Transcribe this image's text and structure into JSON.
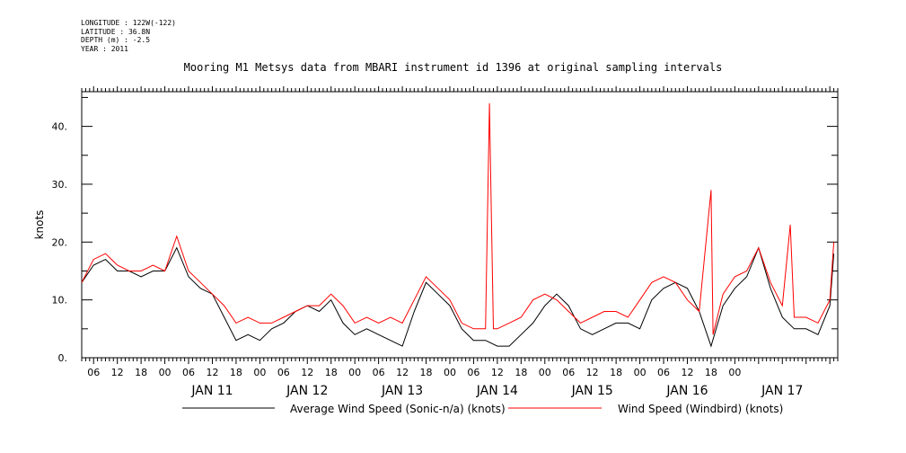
{
  "header": {
    "meta_lines": [
      "LONGITUDE : 122W(-122)",
      "LATITUDE : 36.8N",
      "DEPTH (m) : -2.5",
      "YEAR : 2011"
    ],
    "title": "Mooring M1 Metsys data from MBARI instrument id 1396 at original sampling intervals"
  },
  "chart_data": {
    "type": "line",
    "title": "Mooring M1 Metsys data from MBARI instrument id 1396 at original sampling intervals",
    "xlabel": "",
    "ylabel": "knots",
    "xlim": [
      "2011-01-10T03:00",
      "2011-01-18T02:00"
    ],
    "ylim": [
      0,
      46
    ],
    "y_ticks": [
      "0.",
      "10.",
      "20.",
      "30.",
      "40."
    ],
    "x_hour_ticks": [
      "06",
      "12",
      "18",
      "00",
      "06",
      "12",
      "18",
      "00",
      "06",
      "12",
      "18",
      "00",
      "06",
      "12",
      "18",
      "00",
      "06",
      "12",
      "18",
      "00",
      "06",
      "12",
      "18",
      "00",
      "06",
      "12",
      "18",
      "00"
    ],
    "x_day_labels": [
      "JAN 11",
      "JAN 12",
      "JAN 13",
      "JAN 14",
      "JAN 15",
      "JAN 16",
      "JAN 17"
    ],
    "grid": false,
    "legend_position": "bottom",
    "series": [
      {
        "name": "Average Wind Speed (Sonic-n/a) (knots)",
        "color": "#000000",
        "x": [
          "2011-01-10T03:00",
          "2011-01-10T06:00",
          "2011-01-10T09:00",
          "2011-01-10T12:00",
          "2011-01-10T15:00",
          "2011-01-10T18:00",
          "2011-01-10T21:00",
          "2011-01-11T00:00",
          "2011-01-11T03:00",
          "2011-01-11T06:00",
          "2011-01-11T09:00",
          "2011-01-11T12:00",
          "2011-01-11T15:00",
          "2011-01-11T18:00",
          "2011-01-11T21:00",
          "2011-01-12T00:00",
          "2011-01-12T03:00",
          "2011-01-12T06:00",
          "2011-01-12T09:00",
          "2011-01-12T12:00",
          "2011-01-12T15:00",
          "2011-01-12T18:00",
          "2011-01-12T21:00",
          "2011-01-13T00:00",
          "2011-01-13T03:00",
          "2011-01-13T06:00",
          "2011-01-13T09:00",
          "2011-01-13T12:00",
          "2011-01-13T15:00",
          "2011-01-13T18:00",
          "2011-01-13T21:00",
          "2011-01-14T00:00",
          "2011-01-14T03:00",
          "2011-01-14T06:00",
          "2011-01-14T09:00",
          "2011-01-14T12:00",
          "2011-01-14T15:00",
          "2011-01-14T18:00",
          "2011-01-14T21:00",
          "2011-01-15T00:00",
          "2011-01-15T03:00",
          "2011-01-15T06:00",
          "2011-01-15T09:00",
          "2011-01-15T12:00",
          "2011-01-15T15:00",
          "2011-01-15T18:00",
          "2011-01-15T21:00",
          "2011-01-16T00:00",
          "2011-01-16T03:00",
          "2011-01-16T06:00",
          "2011-01-16T09:00",
          "2011-01-16T12:00",
          "2011-01-16T15:00",
          "2011-01-16T18:00",
          "2011-01-16T21:00",
          "2011-01-17T00:00",
          "2011-01-17T03:00",
          "2011-01-17T06:00",
          "2011-01-17T09:00",
          "2011-01-17T12:00",
          "2011-01-17T15:00",
          "2011-01-17T18:00",
          "2011-01-17T21:00",
          "2011-01-18T00:00",
          "2011-01-18T01:00"
        ],
        "y": [
          13,
          16,
          17,
          15,
          15,
          14,
          15,
          15,
          19,
          14,
          12,
          11,
          7,
          3,
          4,
          3,
          5,
          6,
          8,
          9,
          8,
          10,
          6,
          4,
          5,
          4,
          3,
          2,
          8,
          13,
          11,
          9,
          5,
          3,
          3,
          2,
          2,
          4,
          6,
          9,
          11,
          9,
          5,
          4,
          5,
          6,
          6,
          5,
          10,
          12,
          13,
          12,
          8,
          2,
          9,
          12,
          14,
          19,
          12,
          7,
          5,
          5,
          4,
          9,
          18
        ]
      },
      {
        "name": "Wind Speed (Windbird) (knots)",
        "color": "#ff0000",
        "x": [
          "2011-01-10T03:00",
          "2011-01-10T06:00",
          "2011-01-10T09:00",
          "2011-01-10T12:00",
          "2011-01-10T15:00",
          "2011-01-10T18:00",
          "2011-01-10T21:00",
          "2011-01-11T00:00",
          "2011-01-11T03:00",
          "2011-01-11T06:00",
          "2011-01-11T09:00",
          "2011-01-11T12:00",
          "2011-01-11T15:00",
          "2011-01-11T18:00",
          "2011-01-11T21:00",
          "2011-01-12T00:00",
          "2011-01-12T03:00",
          "2011-01-12T06:00",
          "2011-01-12T09:00",
          "2011-01-12T12:00",
          "2011-01-12T15:00",
          "2011-01-12T18:00",
          "2011-01-12T21:00",
          "2011-01-13T00:00",
          "2011-01-13T03:00",
          "2011-01-13T06:00",
          "2011-01-13T09:00",
          "2011-01-13T12:00",
          "2011-01-13T15:00",
          "2011-01-13T18:00",
          "2011-01-13T21:00",
          "2011-01-14T00:00",
          "2011-01-14T03:00",
          "2011-01-14T06:00",
          "2011-01-14T09:00",
          "2011-01-14T10:00",
          "2011-01-14T10:30",
          "2011-01-14T11:00",
          "2011-01-14T12:00",
          "2011-01-14T15:00",
          "2011-01-14T18:00",
          "2011-01-14T21:00",
          "2011-01-15T00:00",
          "2011-01-15T03:00",
          "2011-01-15T06:00",
          "2011-01-15T09:00",
          "2011-01-15T12:00",
          "2011-01-15T15:00",
          "2011-01-15T18:00",
          "2011-01-15T21:00",
          "2011-01-16T00:00",
          "2011-01-16T03:00",
          "2011-01-16T06:00",
          "2011-01-16T09:00",
          "2011-01-16T12:00",
          "2011-01-16T15:00",
          "2011-01-16T18:00",
          "2011-01-16T18:30",
          "2011-01-16T21:00",
          "2011-01-17T00:00",
          "2011-01-17T03:00",
          "2011-01-17T06:00",
          "2011-01-17T09:00",
          "2011-01-17T12:00",
          "2011-01-17T14:00",
          "2011-01-17T15:00",
          "2011-01-17T18:00",
          "2011-01-17T21:00",
          "2011-01-18T00:00",
          "2011-01-18T01:00"
        ],
        "y": [
          13,
          17,
          18,
          16,
          15,
          15,
          16,
          15,
          21,
          15,
          13,
          11,
          9,
          6,
          7,
          6,
          6,
          7,
          8,
          9,
          9,
          11,
          9,
          6,
          7,
          6,
          7,
          6,
          10,
          14,
          12,
          10,
          6,
          5,
          5,
          44,
          24,
          5,
          5,
          6,
          7,
          10,
          11,
          10,
          8,
          6,
          7,
          8,
          8,
          7,
          10,
          13,
          14,
          13,
          10,
          8,
          29,
          4,
          11,
          14,
          15,
          19,
          13,
          9,
          23,
          7,
          7,
          6,
          10,
          20
        ]
      }
    ]
  }
}
